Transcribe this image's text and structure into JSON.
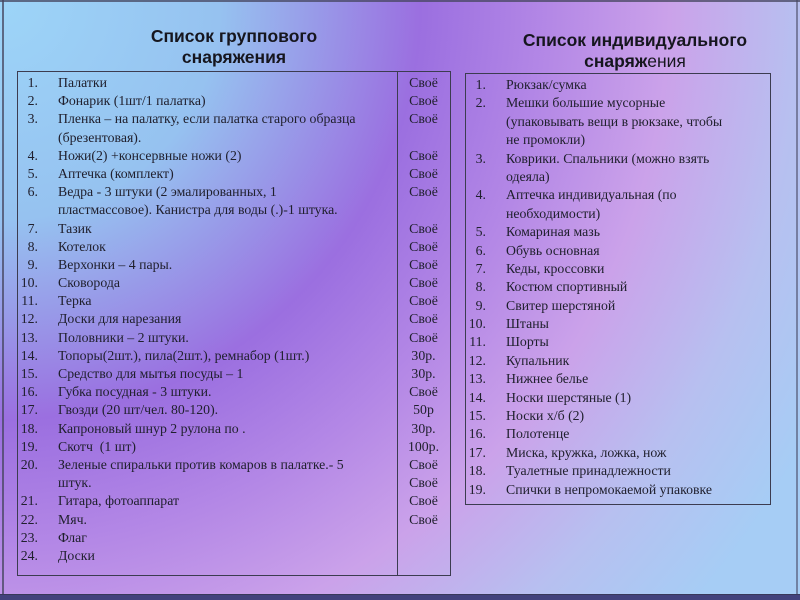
{
  "palette": {
    "bg_stop_cyan": "#9dd5f8",
    "bg_stop_purple": "#9b6fe0",
    "bg_stop_pink": "#cba2ea",
    "bg_stop_blue": "#a6cdf5",
    "frame_line": "#45455f",
    "bottom_bar": "#42427c",
    "table_border": "#3c3c50",
    "text": "#20202e",
    "title_text": "#16161e"
  },
  "group_panel": {
    "title_line1": "Список группового",
    "title_line2": "снаряжения",
    "lines": [
      {
        "num": "1.",
        "text": "Палатки",
        "value": "Своё"
      },
      {
        "num": "2.",
        "text": "Фонарик (1шт/1 палатка)",
        "value": "Своё"
      },
      {
        "num": "3.",
        "text": "Пленка – на палатку, если палатка старого образца",
        "value": "Своё"
      },
      {
        "num": "",
        "text": "(брезентовая).",
        "value": ""
      },
      {
        "num": "4.",
        "text": "Ножи(2) +консервные ножи (2)",
        "value": "Своё"
      },
      {
        "num": "5.",
        "text": "Аптечка (комплект)",
        "value": "Своё"
      },
      {
        "num": "6.",
        "text": "Ведра - 3 штуки (2 эмалированных, 1",
        "value": "Своё"
      },
      {
        "num": "",
        "text": "пластмассовое). Канистра для воды (.)-1 штука.",
        "value": ""
      },
      {
        "num": "7.",
        "text": "Тазик",
        "value": "Своё"
      },
      {
        "num": "8.",
        "text": "Котелок",
        "value": "Своё"
      },
      {
        "num": "9.",
        "text": "Верхонки – 4 пары.",
        "value": "Своё"
      },
      {
        "num": "10.",
        "text": "Сковорода",
        "value": "Своё"
      },
      {
        "num": "11.",
        "text": "Терка",
        "value": "Своё"
      },
      {
        "num": "12.",
        "text": "Доски для нарезания",
        "value": "Своё"
      },
      {
        "num": "13.",
        "text": "Половники – 2 штуки.",
        "value": "Своё"
      },
      {
        "num": "14.",
        "text": "Топоры(2шт.), пила(2шт.), ремнабор (1шт.)",
        "value": "30р."
      },
      {
        "num": "15.",
        "text": "Средство для мытья посуды – 1",
        "value": "30р."
      },
      {
        "num": "16.",
        "text": "Губка посудная - 3 штуки.",
        "value": "Своё"
      },
      {
        "num": "17.",
        "text": "Гвозди (20 шт/чел. 80-120).",
        "value": "50р"
      },
      {
        "num": "18.",
        "text": "Капроновый шнур 2 рулона по .",
        "value": "30р."
      },
      {
        "num": "19.",
        "text": "Скотч  (1 шт)",
        "value": "100р."
      },
      {
        "num": "20.",
        "text": "Зеленые спиральки против комаров в палатке.- 5",
        "value": "Своё"
      },
      {
        "num": "",
        "text": "штук.",
        "value": "Своё"
      },
      {
        "num": "21.",
        "text": "Гитара, фотоаппарат",
        "value": "Своё"
      },
      {
        "num": "22.",
        "text": "Мяч.",
        "value": "Своё"
      },
      {
        "num": "23.",
        "text": "Флаг",
        "value": ""
      },
      {
        "num": "24.",
        "text": "Доски",
        "value": ""
      }
    ]
  },
  "individual_panel": {
    "title_line1": "Список индивидуального",
    "title_line2_bold": "снаряж",
    "title_line2_regular": "ения",
    "lines": [
      {
        "num": "1.",
        "text": "Рюкзак/сумка"
      },
      {
        "num": "2.",
        "text": "Мешки большие мусорные"
      },
      {
        "num": "",
        "text": "(упаковывать вещи в рюкзаке, чтобы"
      },
      {
        "num": "",
        "text": "не промокли)"
      },
      {
        "num": "3.",
        "text": "Коврики. Спальники (можно взять"
      },
      {
        "num": "",
        "text": "одеяла)"
      },
      {
        "num": "4.",
        "text": "Аптечка индивидуальная (по"
      },
      {
        "num": "",
        "text": "необходимости)"
      },
      {
        "num": "5.",
        "text": "Комариная мазь"
      },
      {
        "num": "6.",
        "text": "Обувь основная"
      },
      {
        "num": "7.",
        "text": "Кеды, кроссовки"
      },
      {
        "num": "8.",
        "text": "Костюм спортивный"
      },
      {
        "num": "9.",
        "text": "Свитер шерстяной"
      },
      {
        "num": "10.",
        "text": "Штаны"
      },
      {
        "num": "11.",
        "text": "Шорты"
      },
      {
        "num": "12.",
        "text": "Купальник"
      },
      {
        "num": "13.",
        "text": "Нижнее белье"
      },
      {
        "num": "14.",
        "text": "Носки шерстяные (1)"
      },
      {
        "num": "15.",
        "text": "Носки х/б (2)"
      },
      {
        "num": "16.",
        "text": "Полотенце"
      },
      {
        "num": "17.",
        "text": "Миска, кружка, ложка, нож"
      },
      {
        "num": "18.",
        "text": "Туалетные принадлежности"
      },
      {
        "num": "19.",
        "text": "Спички в непромокаемой упаковке"
      }
    ]
  }
}
